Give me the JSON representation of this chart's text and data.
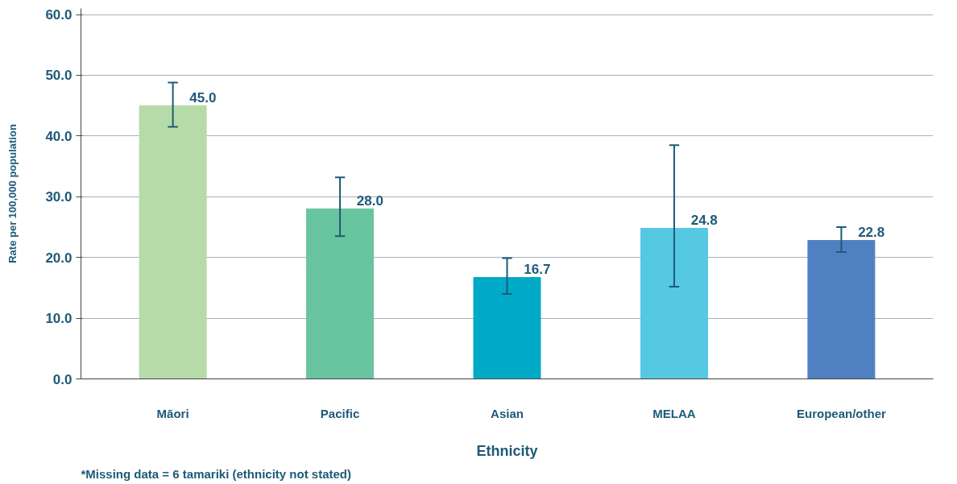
{
  "chart_data": {
    "type": "bar",
    "xlabel": "Ethnicity",
    "ylabel": "Rate per 100,000 population",
    "categories": [
      "Māori",
      "Pacific",
      "Asian",
      "MELAA",
      "European/other"
    ],
    "values": [
      45.0,
      28.0,
      16.7,
      24.8,
      22.8
    ],
    "value_labels": [
      "45.0",
      "28.0",
      "16.7",
      "24.8",
      "22.8"
    ],
    "colors": [
      "#b7dba8",
      "#69c4a0",
      "#00aac6",
      "#55c8e2",
      "#4f81c2"
    ],
    "errors": [
      [
        41.5,
        48.8
      ],
      [
        23.5,
        33.2
      ],
      [
        14.0,
        19.9
      ],
      [
        15.2,
        38.5
      ],
      [
        20.9,
        25.0
      ]
    ],
    "ylim": [
      0,
      61
    ],
    "yticks": [
      {
        "value": 0,
        "label": "0.0"
      },
      {
        "value": 10,
        "label": "10.0"
      },
      {
        "value": 20,
        "label": "20.0"
      },
      {
        "value": 30,
        "label": "30.0"
      },
      {
        "value": 40,
        "label": "40.0"
      },
      {
        "value": 50,
        "label": "50.0"
      },
      {
        "value": 60,
        "label": "60.0"
      }
    ],
    "grid": "y",
    "annotations": [
      "*Missing data = 6 tamariki (ethnicity not stated)"
    ]
  }
}
